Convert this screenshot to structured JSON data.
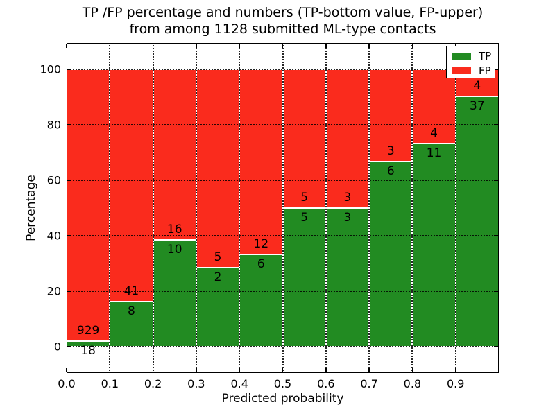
{
  "chart_data": {
    "type": "bar",
    "stacked": true,
    "title_line1": "TP /FP percentage and numbers (TP-bottom value, FP-upper)",
    "title_line2": "from among 1128 submitted ML-type contacts",
    "xlabel": "Predicted probability",
    "ylabel": "Percentage",
    "total_contacts": 1128,
    "categories": [
      "0.0-0.1",
      "0.1-0.2",
      "0.2-0.3",
      "0.3-0.4",
      "0.4-0.5",
      "0.5-0.6",
      "0.6-0.7",
      "0.7-0.8",
      "0.8-0.9",
      "0.9-1.0"
    ],
    "series": [
      {
        "name": "TP",
        "color": "#228B22",
        "counts": [
          18,
          8,
          10,
          2,
          6,
          5,
          3,
          6,
          11,
          37
        ]
      },
      {
        "name": "FP",
        "color": "#FA2B1D",
        "counts": [
          929,
          41,
          16,
          5,
          12,
          5,
          3,
          3,
          4,
          4
        ]
      }
    ],
    "tp_percent_heights": [
      1.9,
      16.3,
      38.5,
      28.6,
      33.3,
      50.0,
      50.0,
      66.7,
      73.3,
      90.2
    ],
    "bin_width": 0.1,
    "x_tick_labels": [
      "0.0",
      "0.1",
      "0.2",
      "0.3",
      "0.4",
      "0.5",
      "0.6",
      "0.7",
      "0.8",
      "0.9"
    ],
    "x_tick_values": [
      0.0,
      0.1,
      0.2,
      0.3,
      0.4,
      0.5,
      0.6,
      0.7,
      0.8,
      0.9
    ],
    "y_tick_values": [
      0,
      20,
      40,
      60,
      80,
      100
    ],
    "xlim": [
      0.0,
      1.0
    ],
    "ylim": [
      -9.5,
      109.5
    ],
    "grid": "dotted",
    "legend": [
      {
        "label": "TP",
        "color": "#228B22"
      },
      {
        "label": "FP",
        "color": "#FA2B1D"
      }
    ],
    "legend_position": "upper right"
  }
}
